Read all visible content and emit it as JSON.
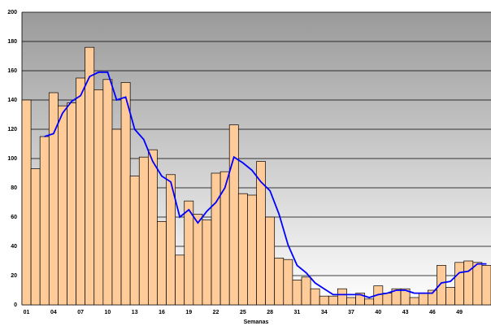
{
  "chart_data": {
    "type": "bar",
    "x_label": "Semanas",
    "categories": [
      "01",
      null,
      null,
      "04",
      null,
      null,
      "07",
      null,
      null,
      "10",
      null,
      null,
      "13",
      null,
      null,
      "16",
      null,
      null,
      "19",
      null,
      null,
      "22",
      null,
      null,
      "25",
      null,
      null,
      "28",
      null,
      null,
      "31",
      null,
      null,
      "34",
      null,
      null,
      "37",
      null,
      null,
      "40",
      null,
      null,
      "43",
      null,
      null,
      "46",
      null,
      null,
      "49",
      null,
      null,
      null
    ],
    "series": [
      {
        "type": "bar",
        "color": "#ffcc99",
        "values": [
          140,
          93,
          115,
          145,
          136,
          138,
          155,
          176,
          147,
          154,
          120,
          152,
          88,
          101,
          106,
          57,
          89,
          34,
          71,
          62,
          58,
          90,
          91,
          123,
          76,
          75,
          98,
          60,
          32,
          31,
          17,
          19,
          11,
          6,
          6,
          11,
          5,
          8,
          4,
          13,
          8,
          11,
          11,
          5,
          8,
          10,
          27,
          12,
          29,
          30,
          29,
          27
        ]
      },
      {
        "type": "line",
        "color": "#0000ff",
        "values": [
          null,
          null,
          115,
          117,
          131,
          139,
          143,
          156,
          159,
          159,
          140,
          142,
          120,
          113,
          98,
          88,
          84,
          60,
          65,
          56,
          64,
          70,
          80,
          101,
          97,
          92,
          84,
          78,
          62,
          41,
          27,
          22,
          15,
          11,
          7,
          7,
          7,
          7,
          5,
          7,
          8,
          10,
          10,
          8,
          8,
          8,
          15,
          16,
          22,
          23,
          28,
          28
        ]
      }
    ],
    "ylim": [
      0,
      200
    ],
    "yticks": [
      0,
      20,
      40,
      60,
      80,
      100,
      120,
      140,
      160,
      180,
      200
    ],
    "grid": true
  }
}
